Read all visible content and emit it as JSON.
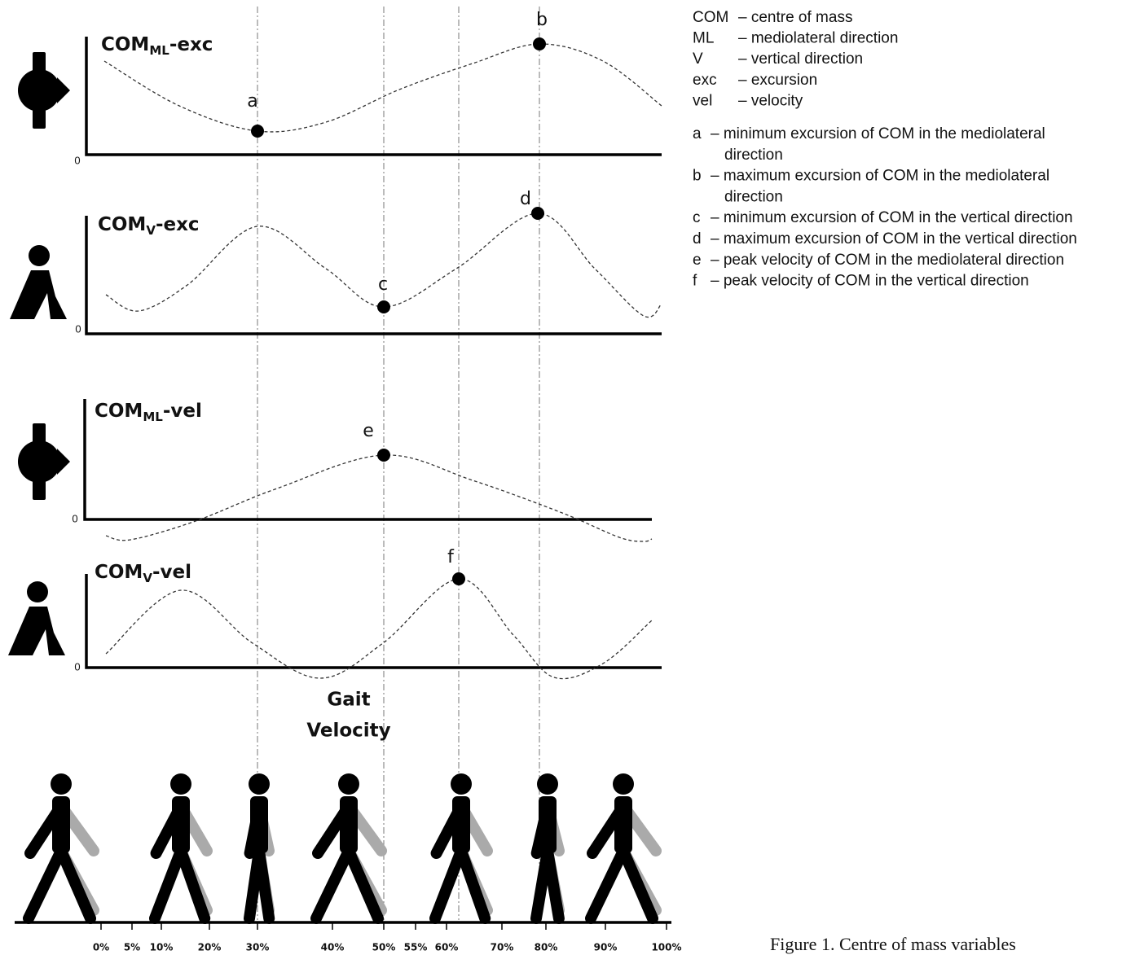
{
  "panels": [
    {
      "title": {
        "main": "COM",
        "sub": "ML",
        "suffix": "-exc"
      },
      "zero": "0",
      "points": [
        "a",
        "b"
      ]
    },
    {
      "title": {
        "main": "COM",
        "sub": "V",
        "suffix": "-exc"
      },
      "zero": "0",
      "points": [
        "c",
        "d"
      ]
    },
    {
      "title": {
        "main": "COM",
        "sub": "ML",
        "suffix": "-vel"
      },
      "zero": "0",
      "points": [
        "e"
      ]
    },
    {
      "title": {
        "main": "COM",
        "sub": "V",
        "suffix": "-vel"
      },
      "zero": "0",
      "points": [
        "f"
      ]
    }
  ],
  "gait_label": [
    "Gait",
    "Velocity"
  ],
  "axis_ticks": [
    "0%",
    "5%",
    "10%",
    "20%",
    "30%",
    "40%",
    "50%",
    "55%",
    "60%",
    "70%",
    "80%",
    "90%",
    "100%"
  ],
  "abbreviations": [
    {
      "term": "COM",
      "definition": "– centre of mass"
    },
    {
      "term": "ML",
      "definition": "– mediolateral direction"
    },
    {
      "term": "V",
      "definition": "– vertical direction"
    },
    {
      "term": "exc",
      "definition": "– excursion"
    },
    {
      "term": "vel",
      "definition": "– velocity"
    }
  ],
  "point_definitions": [
    {
      "key": "a",
      "lines": [
        "– minimum excursion of COM in the mediolateral",
        "direction"
      ]
    },
    {
      "key": "b",
      "lines": [
        "– maximum excursion of COM in the mediolateral",
        "direction"
      ]
    },
    {
      "key": "c",
      "lines": [
        "– minimum excursion of COM in the vertical direction"
      ]
    },
    {
      "key": "d",
      "lines": [
        "– maximum excursion of COM in the vertical direction"
      ]
    },
    {
      "key": "e",
      "lines": [
        "– peak velocity of COM in the mediolateral direction"
      ]
    },
    {
      "key": "f",
      "lines": [
        "– peak velocity of COM in the vertical direction"
      ]
    }
  ],
  "caption": "Figure 1. Centre of mass variables"
}
